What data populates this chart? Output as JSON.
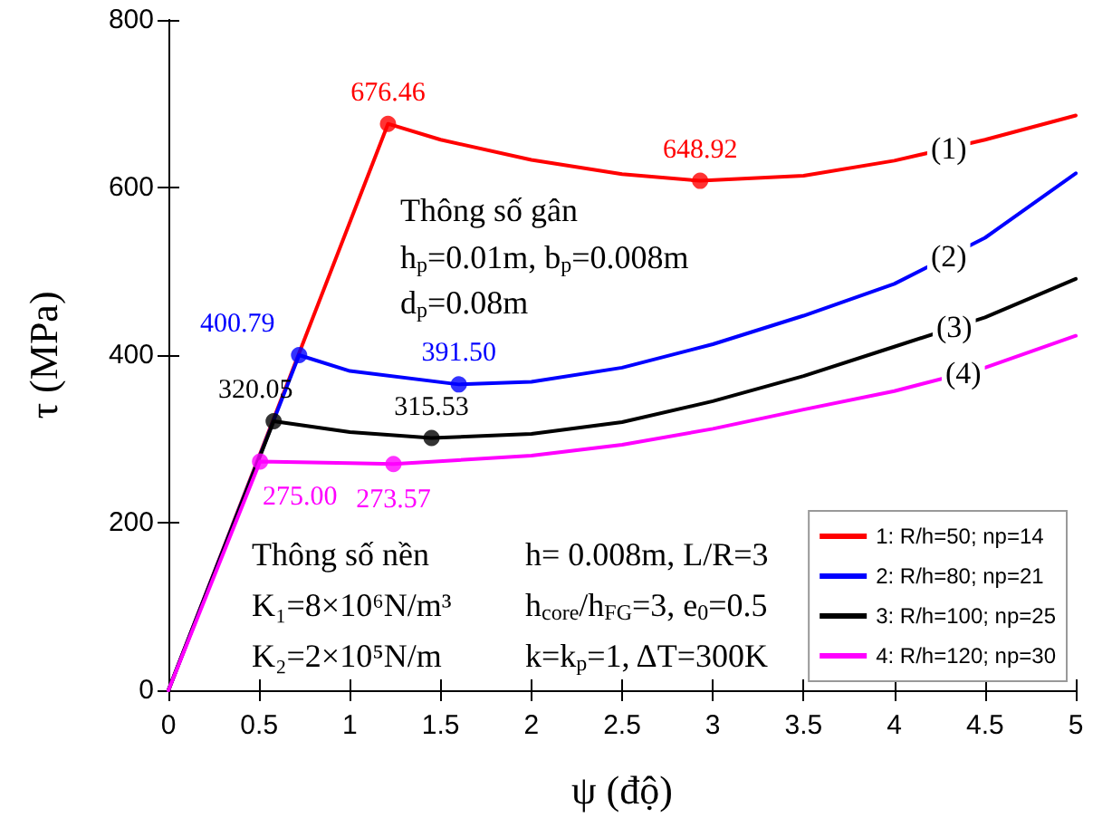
{
  "chart_data": {
    "type": "line",
    "xlabel": "ψ (độ)",
    "ylabel": "τ (MPa)",
    "xlim": [
      0,
      5
    ],
    "xticks": [
      0,
      0.5,
      1,
      1.5,
      2,
      2.5,
      3,
      3.5,
      4,
      4.5,
      5
    ],
    "ylim": [
      0,
      800
    ],
    "yticks": [
      0,
      200,
      400,
      600,
      800
    ],
    "grid": false,
    "legend": "bottom right",
    "line_style": "solid",
    "marker": "none",
    "series": [
      {
        "name": "1: R/h=50; np=14",
        "color": "#ff0000",
        "x": [
          0,
          1.21,
          1.5,
          2,
          2.5,
          2.93,
          3.5,
          4,
          4.5,
          5
        ],
        "values": [
          0,
          676,
          657,
          633,
          616,
          608,
          614,
          632,
          657,
          686
        ]
      },
      {
        "name": "2: R/h=80; np=21",
        "color": "#0000ff",
        "x": [
          0,
          0.72,
          1,
          1.6,
          2,
          2.5,
          3,
          3.5,
          4,
          4.5,
          5
        ],
        "values": [
          0,
          400,
          381,
          365,
          368,
          385,
          413,
          447,
          485,
          540,
          617
        ]
      },
      {
        "name": "3: R/h=100; np=25",
        "color": "#000000",
        "x": [
          0,
          0.58,
          1,
          1.45,
          2,
          2.5,
          3,
          3.5,
          4,
          4.5,
          5
        ],
        "values": [
          0,
          321,
          308,
          301,
          306,
          320,
          345,
          375,
          410,
          445,
          491
        ]
      },
      {
        "name": "4: R/h=120; np=30",
        "color": "#ff00ff",
        "x": [
          0,
          0.505,
          1,
          1.24,
          2,
          2.5,
          3,
          3.5,
          4,
          4.5,
          5
        ],
        "values": [
          0,
          273,
          271,
          270,
          280,
          293,
          312,
          335,
          357,
          385,
          423
        ]
      }
    ],
    "annotations": [
      {
        "text": "676.46",
        "x": 1.21,
        "y": 676
      },
      {
        "text": "648.92",
        "x": 2.93,
        "y": 608
      },
      {
        "text": "400.79",
        "x": 0.72,
        "y": 400
      },
      {
        "text": "391.50",
        "x": 1.6,
        "y": 365
      },
      {
        "text": "320.05",
        "x": 0.58,
        "y": 321
      },
      {
        "text": "315.53",
        "x": 1.45,
        "y": 301
      },
      {
        "text": "275.00",
        "x": 0.505,
        "y": 273
      },
      {
        "text": "273.57",
        "x": 1.24,
        "y": 270
      },
      {
        "text": "(1)",
        "x": 4.3,
        "y": 647
      },
      {
        "text": "(2)",
        "x": 4.3,
        "y": 518
      },
      {
        "text": "(3)",
        "x": 4.33,
        "y": 433
      },
      {
        "text": "(4)",
        "x": 4.38,
        "y": 378
      },
      "Thông số gân",
      "h$_{p}$=0.01m, b$_{p}$=0.008m",
      "d$_{p}$=0.08m",
      "Thông số nền",
      "K₁=8×10⁶N/m³",
      "K₂=2×10⁵N/m",
      "h= 0.008m, L/R=3",
      "h$_{core}$/h$_{FG}$=3, e$_{0}$=0.5",
      "k=k$_{p}$=1, ΔT=300K"
    ]
  }
}
